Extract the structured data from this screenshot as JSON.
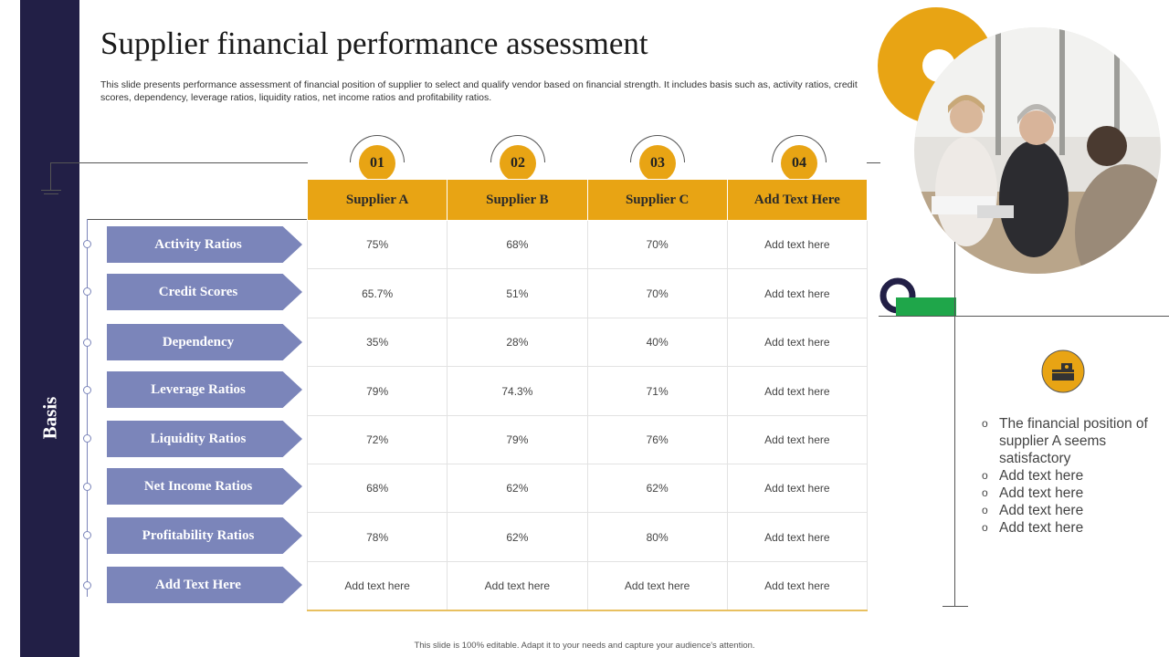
{
  "title": "Supplier financial performance assessment",
  "description": "This slide presents performance assessment of financial position of supplier to select and qualify vendor based on financial strength. It includes basis such as, activity ratios, credit scores, dependency, leverage ratios, liquidity ratios, net income ratios and profitability ratios.",
  "sidebar_label": "Basis",
  "badges": [
    "01",
    "02",
    "03",
    "04"
  ],
  "columns": [
    "Supplier A",
    "Supplier B",
    "Supplier C",
    "Add Text Here"
  ],
  "rows": [
    {
      "label": "Activity Ratios",
      "values": [
        "75%",
        "68%",
        "70%",
        "Add text here"
      ]
    },
    {
      "label": "Credit Scores",
      "values": [
        "65.7%",
        "51%",
        "70%",
        "Add text here"
      ]
    },
    {
      "label": "Dependency",
      "values": [
        "35%",
        "28%",
        "40%",
        "Add text here"
      ]
    },
    {
      "label": "Leverage Ratios",
      "values": [
        "79%",
        "74.3%",
        "71%",
        "Add text here"
      ]
    },
    {
      "label": "Liquidity Ratios",
      "values": [
        "72%",
        "79%",
        "76%",
        "Add text here"
      ]
    },
    {
      "label": "Net Income Ratios",
      "values": [
        "68%",
        "62%",
        "62%",
        "Add text here"
      ]
    },
    {
      "label": "Profitability Ratios",
      "values": [
        "78%",
        "62%",
        "80%",
        "Add text here"
      ]
    },
    {
      "label": "Add Text Here",
      "values": [
        "Add text here",
        "Add text here",
        "Add text here",
        "Add text here"
      ]
    }
  ],
  "notes": [
    "The financial position of supplier A seems satisfactory",
    "Add text here",
    "Add text here",
    "Add text here",
    "Add text here"
  ],
  "footer": "This slide is 100% editable. Adapt it to your needs and capture your audience's attention.",
  "colors": {
    "sidebar": "#221f46",
    "accent": "#e8a414",
    "arrow": "#7b85ba",
    "green": "#1fa64a"
  },
  "icons": {
    "note_icon": "money-stack-icon",
    "photo": "business-meeting-photo"
  }
}
